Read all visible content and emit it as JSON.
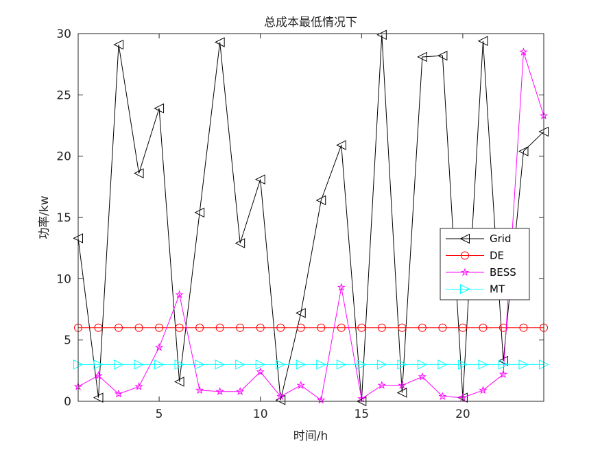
{
  "chart_data": {
    "type": "line",
    "title": "总成本最低情况下",
    "xlabel": "时间/h",
    "ylabel": "功率/kw",
    "xlim": [
      1,
      24
    ],
    "ylim": [
      0,
      30
    ],
    "xticks": [
      5,
      10,
      15,
      20
    ],
    "yticks": [
      0,
      5,
      10,
      15,
      20,
      25,
      30
    ],
    "grid": false,
    "legend_position": "center-right",
    "x": [
      1,
      2,
      3,
      4,
      5,
      6,
      7,
      8,
      9,
      10,
      11,
      12,
      13,
      14,
      15,
      16,
      17,
      18,
      19,
      20,
      21,
      22,
      23,
      24
    ],
    "series": [
      {
        "name": "Grid",
        "color": "#000000",
        "marker": "triangle-left",
        "values": [
          13.3,
          0.3,
          29.1,
          18.6,
          23.9,
          1.6,
          15.4,
          29.3,
          12.9,
          18.1,
          0.1,
          7.2,
          16.4,
          20.9,
          0.0,
          29.9,
          0.7,
          28.1,
          28.2,
          0.3,
          29.4,
          3.3,
          20.4,
          22.0
        ]
      },
      {
        "name": "DE",
        "color": "#ff0000",
        "marker": "circle",
        "values": [
          6,
          6,
          6,
          6,
          6,
          6,
          6,
          6,
          6,
          6,
          6,
          6,
          6,
          6,
          6,
          6,
          6,
          6,
          6,
          6,
          6,
          6,
          6,
          6
        ]
      },
      {
        "name": "BESS",
        "color": "#ff00ff",
        "marker": "star",
        "values": [
          1.2,
          2.1,
          0.6,
          1.2,
          4.4,
          8.7,
          0.9,
          0.8,
          0.8,
          2.4,
          0.4,
          1.3,
          0.1,
          9.3,
          0.2,
          1.3,
          1.3,
          2.0,
          0.4,
          0.3,
          0.9,
          2.2,
          28.5,
          23.3
        ]
      },
      {
        "name": "MT",
        "color": "#00ffff",
        "marker": "triangle-right",
        "values": [
          3,
          3,
          3,
          3,
          3,
          3,
          3,
          3,
          3,
          3,
          3,
          3,
          3,
          3,
          3,
          3,
          3,
          3,
          3,
          3,
          3,
          3,
          3,
          3
        ]
      }
    ]
  }
}
